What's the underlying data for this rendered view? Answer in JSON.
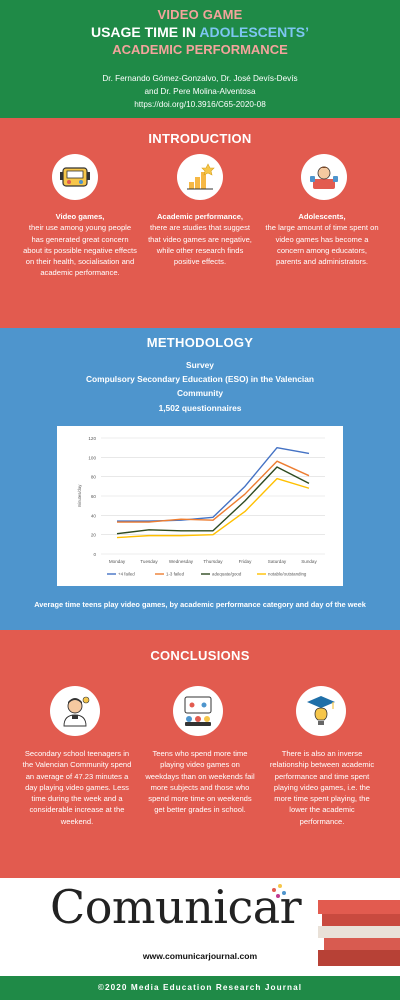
{
  "header": {
    "title_line1": "VIDEO GAME",
    "title_line2_a": "USAGE TIME IN ",
    "title_line2_b": "ADOLESCENTS’",
    "title_line3": "ACADEMIC PERFORMANCE",
    "authors_line1": "Dr. Fernando Gómez-Gonzalvo, Dr. José Devís-Devís",
    "authors_line2": "and Dr. Pere Molina-Alventosa",
    "doi": "https://doi.org/10.3916/C65-2020-08"
  },
  "introduction": {
    "title": "INTRODUCTION",
    "columns": [
      {
        "icon": "game-console-icon",
        "heading": "Video games,",
        "text": "their use among young people has generated great concern about its possible negative effects on their health, socialisation and academic performance."
      },
      {
        "icon": "growth-chart-icon",
        "heading": "Academic performance,",
        "text": "there are studies that suggest that video games are negative, while other research finds positive effects."
      },
      {
        "icon": "adolescent-icon",
        "heading": "Adolescents,",
        "text": "the large amount of time spent on video games has become a concern among educators, parents and administrators."
      }
    ]
  },
  "methodology": {
    "title": "METHODOLOGY",
    "line1": "Survey",
    "line2": "Compulsory Secondary Education (ESO) in the Valencian",
    "line3": "Community",
    "line4": "1,502 questionnaires",
    "caption": "Average time teens play video games, by academic performance category and day of the week"
  },
  "chart_data": {
    "type": "line",
    "ylabel": "minutes/day",
    "ylim": [
      0,
      120
    ],
    "yticks": [
      0,
      20,
      40,
      60,
      80,
      100,
      120
    ],
    "categories": [
      "Monday",
      "Tuesday",
      "Wednesday",
      "Thursday",
      "Friday",
      "Saturday",
      "Sunday"
    ],
    "grid": true,
    "legend_position": "bottom",
    "series": [
      {
        "name": "+4 failed",
        "color": "#4472c4",
        "values": [
          34,
          34,
          35,
          38,
          70,
          110,
          104
        ]
      },
      {
        "name": "1-3 failed",
        "color": "#ed7d31",
        "values": [
          33,
          33,
          36,
          35,
          62,
          96,
          81
        ]
      },
      {
        "name": "adequate/good",
        "color": "#2e4a20",
        "values": [
          21,
          25,
          24,
          24,
          55,
          90,
          73
        ]
      },
      {
        "name": "notable/outstanding",
        "color": "#ffc000",
        "values": [
          17,
          19,
          19,
          20,
          44,
          78,
          68
        ]
      }
    ]
  },
  "conclusions": {
    "title": "CONCLUSIONS",
    "columns": [
      {
        "icon": "student-icon",
        "text": "Secondary school teenagers in the Valencian Community spend an average of 47.23 minutes a day playing video games. Less time during the week and a considerable increase at the weekend."
      },
      {
        "icon": "gamers-icon",
        "text": "Teens who spend more time playing video games on weekdays than on weekends fail more subjects and those who spend more time on weekends get better grades in school."
      },
      {
        "icon": "graduation-idea-icon",
        "text": "There is also an inverse relationship between academic performance and time spent playing video games, i.e. the more time spent playing, the lower the academic performance."
      }
    ]
  },
  "branding": {
    "logo_text": "Comunicar",
    "website": "www.comunicarjournal.com"
  },
  "footer": {
    "text": "©2020 Media Education Research Journal"
  }
}
